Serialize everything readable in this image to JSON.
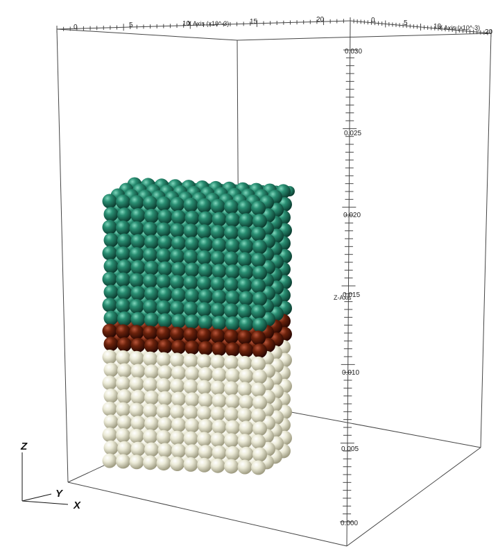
{
  "x_axis": {
    "title": "X Axis (x10^-3)",
    "ticks": [
      "0",
      "5",
      "10",
      "15",
      "20"
    ]
  },
  "y_axis": {
    "title": "Y Axis (x10^-3)",
    "ticks": [
      "0",
      "5",
      "10",
      "20"
    ]
  },
  "z_axis": {
    "title": "Z-Axis",
    "ticks": [
      "0.030",
      "0.025",
      "0.020",
      "0.015",
      "0.010",
      "0.005",
      "0.000"
    ]
  },
  "triad": {
    "z": "Z",
    "y": "Y",
    "x": "X"
  },
  "layers": [
    {
      "material": "green-spheres",
      "color": "#1f7a62"
    },
    {
      "material": "brown-spheres",
      "color": "#6b220c"
    },
    {
      "material": "cream-spheres",
      "color": "#e8e6d0"
    }
  ]
}
